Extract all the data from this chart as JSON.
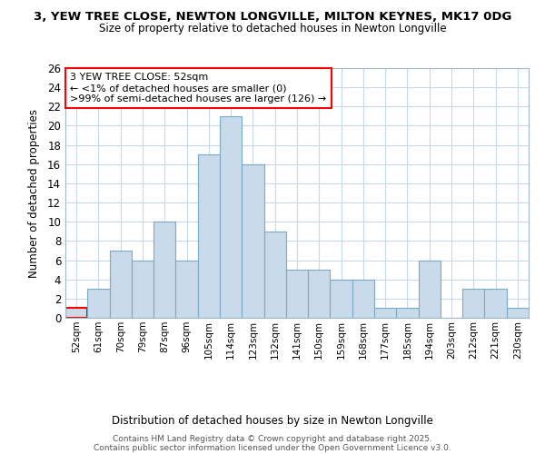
{
  "title1": "3, YEW TREE CLOSE, NEWTON LONGVILLE, MILTON KEYNES, MK17 0DG",
  "title2": "Size of property relative to detached houses in Newton Longville",
  "xlabel": "Distribution of detached houses by size in Newton Longville",
  "ylabel": "Number of detached properties",
  "footnote": "Contains HM Land Registry data © Crown copyright and database right 2025.\nContains public sector information licensed under the Open Government Licence v3.0.",
  "bar_labels": [
    "52sqm",
    "61sqm",
    "70sqm",
    "79sqm",
    "87sqm",
    "96sqm",
    "105sqm",
    "114sqm",
    "123sqm",
    "132sqm",
    "141sqm",
    "150sqm",
    "159sqm",
    "168sqm",
    "177sqm",
    "185sqm",
    "194sqm",
    "203sqm",
    "212sqm",
    "221sqm",
    "230sqm"
  ],
  "bar_values": [
    1,
    3,
    7,
    6,
    10,
    6,
    17,
    21,
    16,
    9,
    5,
    5,
    4,
    4,
    1,
    1,
    6,
    0,
    3,
    3,
    1
  ],
  "bar_color": "#c9daea",
  "bar_edge_color": "#7aaac8",
  "highlight_index": 0,
  "highlight_edge_color": "red",
  "ylim": [
    0,
    26
  ],
  "yticks": [
    0,
    2,
    4,
    6,
    8,
    10,
    12,
    14,
    16,
    18,
    20,
    22,
    24,
    26
  ],
  "annotation_line1": "3 YEW TREE CLOSE: 52sqm",
  "annotation_line2": "← <1% of detached houses are smaller (0)",
  "annotation_line3": ">99% of semi-detached houses are larger (126) →",
  "bg_color": "#ffffff",
  "plot_bg_color": "#ffffff",
  "grid_color": "#c8d8e8"
}
